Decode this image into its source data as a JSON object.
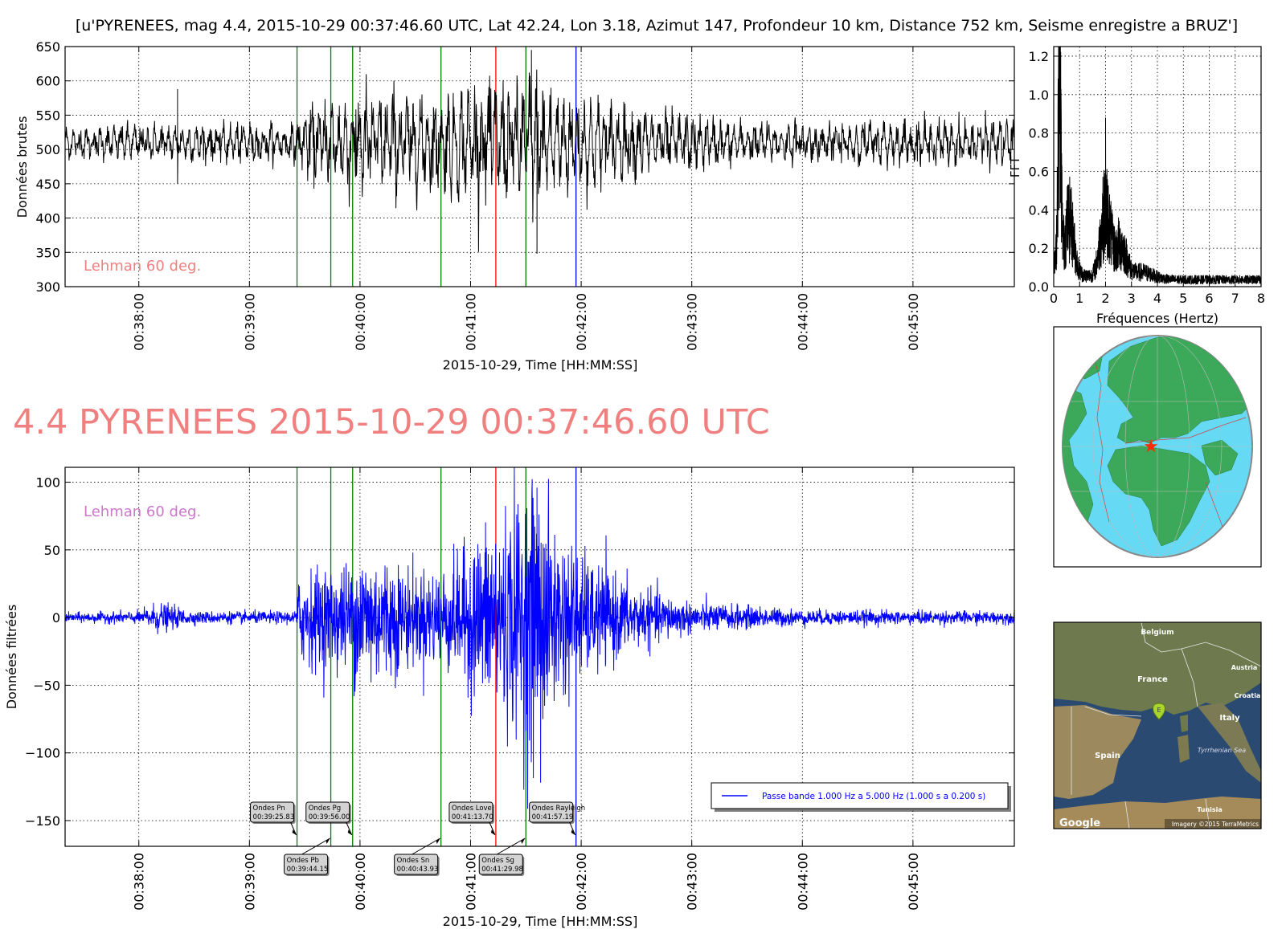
{
  "header": {
    "title": "[u'PYRENEES, mag 4.4, 2015-10-29 00:37:46.60 UTC, Lat 42.24, Lon 3.18, Azimut 147, Profondeur 10 km, Distance   752 km, Seisme enregistre a BRUZ']",
    "big_title": "4.4 PYRENEES 2015-10-29 00:37:46.60 UTC",
    "big_title_color": "#f08080"
  },
  "colors": {
    "raw_trace": "#000000",
    "filtered_trace": "#0000ff",
    "p_s_lines": "#008000",
    "sg_line": "#ff0000",
    "rayleigh_line": "#0000ff",
    "lehman_top": "#f08080",
    "lehman_bottom": "#cc77cc",
    "ocean": "#66d9f5",
    "land": "#3ca85a"
  },
  "raw_panel": {
    "ylabel": "Données brutes",
    "xlabel": "2015-10-29, Time [HH:MM:SS]",
    "annotation": "Lehman 60 deg.",
    "ylim": [
      300,
      650
    ],
    "yticks": [
      "300",
      "350",
      "400",
      "450",
      "500",
      "550",
      "600",
      "650"
    ],
    "xticks": [
      "00:38:00",
      "00:39:00",
      "00:40:00",
      "00:41:00",
      "00:42:00",
      "00:43:00",
      "00:44:00",
      "00:45:00"
    ]
  },
  "filtered_panel": {
    "ylabel": "Données filtrées",
    "xlabel": "2015-10-29, Time [HH:MM:SS]",
    "annotation": "Lehman 60 deg.",
    "ylim": [
      -169,
      111
    ],
    "yticks": [
      "100",
      "50",
      "0",
      "−50",
      "−100",
      "−150"
    ],
    "xticks": [
      "00:38:00",
      "00:39:00",
      "00:40:00",
      "00:41:00",
      "00:42:00",
      "00:43:00",
      "00:44:00",
      "00:45:00"
    ],
    "legend": "Passe bande 1.000 Hz a 5.000 Hz (1.000 s a 0.200 s)"
  },
  "fft_panel": {
    "xlabel": "Fréquences (Hertz)",
    "ylabel": "FFT",
    "xticks": [
      "0",
      "1",
      "2",
      "3",
      "4",
      "5",
      "6",
      "7",
      "8"
    ],
    "yticks": [
      "0.0",
      "0.2",
      "0.4",
      "0.6",
      "0.8",
      "1.0",
      "1.2"
    ]
  },
  "map": {
    "labels": {
      "belgium": "Belgium",
      "france": "France",
      "austria": "Austria",
      "croatia": "Croatia",
      "italy": "Italy",
      "spain": "Spain",
      "tyrrhenian": "Tyrrhenian Sea",
      "tunisia": "Tunisia",
      "marker": "E",
      "google": "Google",
      "imagery": "Imagery ©2015 TerraMetrics"
    }
  },
  "phases": [
    {
      "name": "Ondes Pn",
      "label": "Ondes Pn",
      "time": "00:39:25.83",
      "color": "#008000"
    },
    {
      "name": "Ondes Pb",
      "label": "Ondes Pb",
      "time": "00:39:44.15",
      "color": "#008000"
    },
    {
      "name": "Ondes Pg",
      "label": "Ondes Pg",
      "time": "00:39:56.00",
      "color": "#008000"
    },
    {
      "name": "Ondes Sn",
      "label": "Ondes Sn",
      "time": "00:40:43.93",
      "color": "#008000"
    },
    {
      "name": "Ondes Love",
      "label": "Ondes Love",
      "time": "00:41:13.70",
      "color": "#ff0000"
    },
    {
      "name": "Ondes Sg",
      "label": "Ondes Sg",
      "time": "00:41:29.98",
      "color": "#008000"
    },
    {
      "name": "Ondes Rayleigh",
      "label": "Ondes Rayleigh",
      "time": "00:41:57.19",
      "color": "#0000ff"
    }
  ],
  "chart_data": [
    {
      "type": "line",
      "title": "",
      "xlabel": "2015-10-29, Time [HH:MM:SS]",
      "ylabel": "Données brutes",
      "xlim": [
        "00:37:20",
        "00:45:55"
      ],
      "ylim": [
        300,
        650
      ],
      "grid": true,
      "series": [
        {
          "name": "",
          "baseline": 510,
          "envelope": [
            {
              "t": "00:37:20",
              "amp": 20
            },
            {
              "t": "00:38:20",
              "amp": 25
            },
            {
              "t": "00:39:26",
              "amp": 25
            },
            {
              "t": "00:39:30",
              "amp": 45
            },
            {
              "t": "00:40:00",
              "amp": 70
            },
            {
              "t": "00:40:40",
              "amp": 60
            },
            {
              "t": "00:41:30",
              "amp": 85
            },
            {
              "t": "00:42:00",
              "amp": 60
            },
            {
              "t": "00:42:40",
              "amp": 40
            },
            {
              "t": "00:43:30",
              "amp": 25
            },
            {
              "t": "00:45:55",
              "amp": 30
            }
          ],
          "spikes": [
            {
              "t": "00:38:21",
              "y": 588
            },
            {
              "t": "00:38:21",
              "y": 450
            },
            {
              "t": "00:41:36",
              "y": 348
            },
            {
              "t": "00:41:33",
              "y": 645
            }
          ]
        }
      ]
    },
    {
      "type": "line",
      "title": "",
      "xlabel": "2015-10-29, Time [HH:MM:SS]",
      "ylabel": "Données filtrées",
      "xlim": [
        "00:37:20",
        "00:45:55"
      ],
      "ylim": [
        -169,
        111
      ],
      "grid": true,
      "legend": "bottom-right",
      "series": [
        {
          "name": "Passe bande 1.000 Hz a 5.000 Hz (1.000 s a 0.200 s)",
          "envelope": [
            {
              "t": "00:37:20",
              "amp": 3
            },
            {
              "t": "00:38:00",
              "amp": 4
            },
            {
              "t": "00:38:10",
              "amp": 10
            },
            {
              "t": "00:38:30",
              "amp": 4
            },
            {
              "t": "00:39:25",
              "amp": 4
            },
            {
              "t": "00:39:27",
              "amp": 30
            },
            {
              "t": "00:39:55",
              "amp": 35
            },
            {
              "t": "00:40:00",
              "amp": 50
            },
            {
              "t": "00:40:30",
              "amp": 30
            },
            {
              "t": "00:40:50",
              "amp": 35
            },
            {
              "t": "00:41:05",
              "amp": 55
            },
            {
              "t": "00:41:35",
              "amp": 90
            },
            {
              "t": "00:41:45",
              "amp": 60
            },
            {
              "t": "00:42:00",
              "amp": 40
            },
            {
              "t": "00:42:30",
              "amp": 20
            },
            {
              "t": "00:43:00",
              "amp": 10
            },
            {
              "t": "00:44:00",
              "amp": 5
            },
            {
              "t": "00:45:55",
              "amp": 4
            }
          ],
          "spikes": [
            {
              "t": "00:41:36",
              "y": 96
            },
            {
              "t": "00:41:38",
              "y": -122
            },
            {
              "t": "00:41:33",
              "y": -100
            }
          ]
        }
      ]
    },
    {
      "type": "line",
      "title": "",
      "xlabel": "Fréquences (Hertz)",
      "ylabel": "FFT",
      "xlim": [
        0,
        8
      ],
      "ylim": [
        0,
        1.25
      ],
      "grid": true,
      "series": [
        {
          "name": "",
          "peaks": [
            {
              "f": 0.2,
              "y": 1.25
            },
            {
              "f": 0.5,
              "y": 0.45
            },
            {
              "f": 2.0,
              "y": 0.88
            },
            {
              "f": 2.5,
              "y": 0.36
            },
            {
              "f": 3.3,
              "y": 0.12
            },
            {
              "f": 8.0,
              "y": 0.04
            }
          ]
        }
      ]
    }
  ]
}
